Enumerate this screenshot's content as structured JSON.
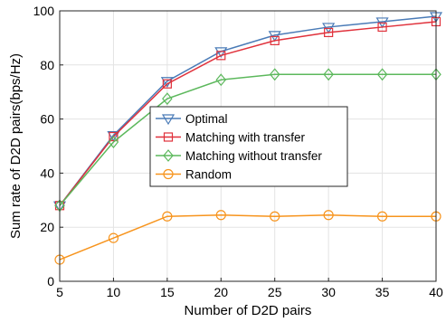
{
  "chart_data": {
    "type": "line",
    "xlabel": "Number of D2D pairs",
    "ylabel": "Sum rate of D2D pairs(bps/Hz)",
    "xlim": [
      5,
      40
    ],
    "ylim": [
      0,
      100
    ],
    "x": [
      5,
      10,
      15,
      20,
      25,
      30,
      35,
      40
    ],
    "xticks": [
      5,
      10,
      15,
      20,
      25,
      30,
      35,
      40
    ],
    "yticks": [
      0,
      20,
      40,
      60,
      80,
      100
    ],
    "grid": true,
    "legend_position": "center-left",
    "series": [
      {
        "name": "Optimal",
        "color": "#4a7bb7",
        "marker": "triangle-down",
        "values": [
          28,
          54,
          74,
          85,
          91,
          94,
          96,
          98
        ]
      },
      {
        "name": "Matching with transfer",
        "color": "#e0313b",
        "marker": "square",
        "values": [
          28,
          53.5,
          73,
          83.5,
          89,
          92,
          94,
          96
        ]
      },
      {
        "name": "Matching without transfer",
        "color": "#5cb85c",
        "marker": "diamond",
        "values": [
          28,
          51.5,
          67.5,
          74.5,
          76.5,
          76.5,
          76.5,
          76.5
        ]
      },
      {
        "name": "Random",
        "color": "#f7941d",
        "marker": "circle",
        "values": [
          8,
          16,
          24,
          24.5,
          24,
          24.5,
          24,
          24
        ]
      }
    ]
  }
}
